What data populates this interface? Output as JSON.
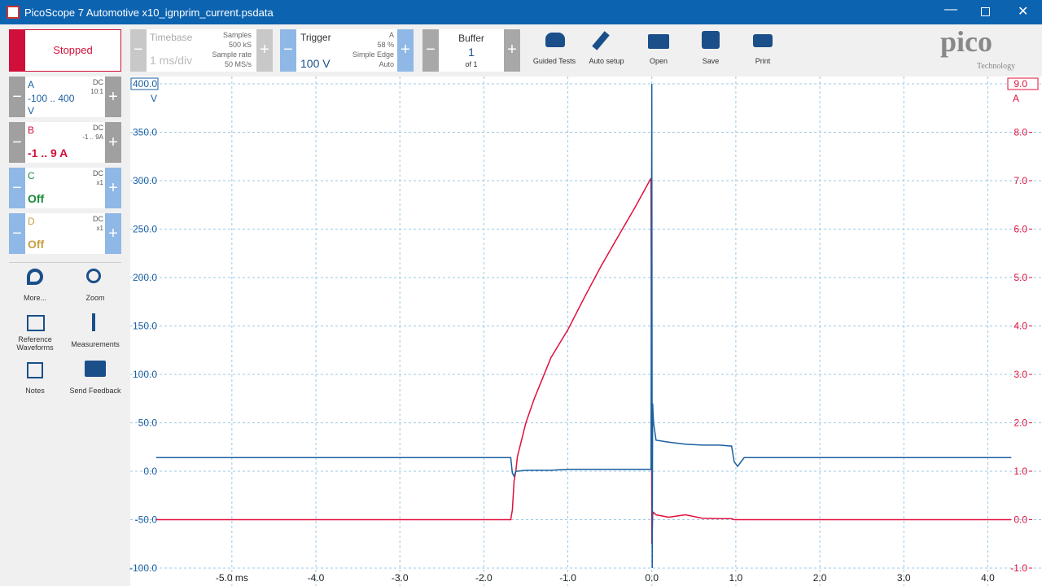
{
  "window": {
    "title": "PicoScope 7 Automotive x10_ignprim_current.psdata"
  },
  "toolbar": {
    "run_state": "Stopped",
    "timebase": {
      "label": "Timebase",
      "value": "1 ms/div",
      "samples_label": "Samples",
      "samples": "500 kS",
      "rate_label": "Sample rate",
      "rate": "50 MS/s"
    },
    "trigger": {
      "label": "Trigger",
      "level": "100 V",
      "channel": "A",
      "position": "58 %",
      "kind": "Simple Edge",
      "mode": "Auto"
    },
    "buffer": {
      "label": "Buffer",
      "index": "1",
      "count": "of 1"
    },
    "actions": [
      "Guided Tests",
      "Auto setup",
      "Open",
      "Save",
      "Print"
    ],
    "logo": {
      "brand": "pico",
      "sub": "Technology"
    }
  },
  "channels": [
    {
      "name": "A",
      "range": "-100 .. 400",
      "unit": "V",
      "coupling": "DC",
      "probe": "10:1"
    },
    {
      "name": "B",
      "range": "-1 .. 9 A",
      "coupling": "DC",
      "probe": "-1 .. 9A"
    },
    {
      "name": "C",
      "range": "Off",
      "coupling": "DC",
      "probe": "x1"
    },
    {
      "name": "D",
      "range": "Off",
      "coupling": "DC",
      "probe": "x1"
    }
  ],
  "tools": [
    "More...",
    "Zoom",
    "Reference Waveforms",
    "Measurements",
    "Notes",
    "Send Feedback"
  ],
  "chart_data": {
    "type": "line",
    "y_unit": "V",
    "y2_unit": "A",
    "x": [
      -5.9,
      -1.68,
      -1.66,
      -1.64,
      -1.62,
      -1.6,
      -1.5,
      -1.4,
      -1.2,
      -1.0,
      -0.8,
      -0.6,
      -0.4,
      -0.2,
      -0.01,
      0.0,
      0.005,
      0.01,
      0.02,
      0.05,
      0.2,
      0.4,
      0.6,
      0.8,
      0.95,
      0.98,
      1.02,
      1.1,
      4.28
    ],
    "series": [
      {
        "name": "A",
        "color": "#1a5fa0",
        "values": [
          14,
          14,
          -2,
          -5,
          0,
          0,
          1,
          1,
          1,
          2,
          2,
          2,
          2,
          2,
          2,
          400,
          -100,
          70,
          50,
          32,
          30,
          28,
          27,
          27,
          26,
          10,
          5,
          14,
          14
        ]
      },
      {
        "name": "B",
        "color": "#e0103a",
        "axis": "y2",
        "values": [
          0,
          0,
          0.2,
          0.8,
          1.0,
          1.3,
          2.0,
          2.5,
          3.35,
          3.92,
          4.6,
          5.25,
          5.85,
          6.45,
          7.05,
          -0.5,
          -0.3,
          0.1,
          0.15,
          0.1,
          0.05,
          0.1,
          0.03,
          0.02,
          0.02,
          0,
          0,
          0,
          0
        ]
      }
    ],
    "xlim": [
      -6.21,
      4.5
    ],
    "xticks": [
      {
        "value": -5,
        "label": "-5.0 ms"
      },
      {
        "value": -4,
        "label": "-4.0"
      },
      {
        "value": -3,
        "label": "-3.0"
      },
      {
        "value": -2,
        "label": "-2.0"
      },
      {
        "value": -1,
        "label": "-1.0"
      },
      {
        "value": 0,
        "label": "0.0"
      },
      {
        "value": 1,
        "label": "1.0"
      },
      {
        "value": 2,
        "label": "2.0"
      },
      {
        "value": 3,
        "label": "3.0"
      },
      {
        "value": 4,
        "label": "4.0"
      }
    ],
    "ylim": [
      -100,
      400
    ],
    "yticks": [
      {
        "value": -100,
        "label": "-100.0"
      },
      {
        "value": -50,
        "label": "-50.0"
      },
      {
        "value": 0,
        "label": "0.0"
      },
      {
        "value": 50,
        "label": "50.0"
      },
      {
        "value": 100,
        "label": "100.0"
      },
      {
        "value": 150,
        "label": "150.0"
      },
      {
        "value": 200,
        "label": "200.0"
      },
      {
        "value": 250,
        "label": "250.0"
      },
      {
        "value": 300,
        "label": "300.0"
      },
      {
        "value": 350,
        "label": "350.0"
      },
      {
        "value": 400,
        "label": "400.0"
      }
    ],
    "y2lim": [
      -1,
      9
    ],
    "y2ticks": [
      {
        "value": -1,
        "label": "-1.0"
      },
      {
        "value": 0,
        "label": "0.0"
      },
      {
        "value": 1,
        "label": "1.0"
      },
      {
        "value": 2,
        "label": "2.0"
      },
      {
        "value": 3,
        "label": "3.0"
      },
      {
        "value": 4,
        "label": "4.0"
      },
      {
        "value": 5,
        "label": "5.0"
      },
      {
        "value": 6,
        "label": "6.0"
      },
      {
        "value": 7,
        "label": "7.0"
      },
      {
        "value": 8,
        "label": "8.0"
      },
      {
        "value": 9,
        "label": "9.0"
      }
    ],
    "grid": true
  }
}
